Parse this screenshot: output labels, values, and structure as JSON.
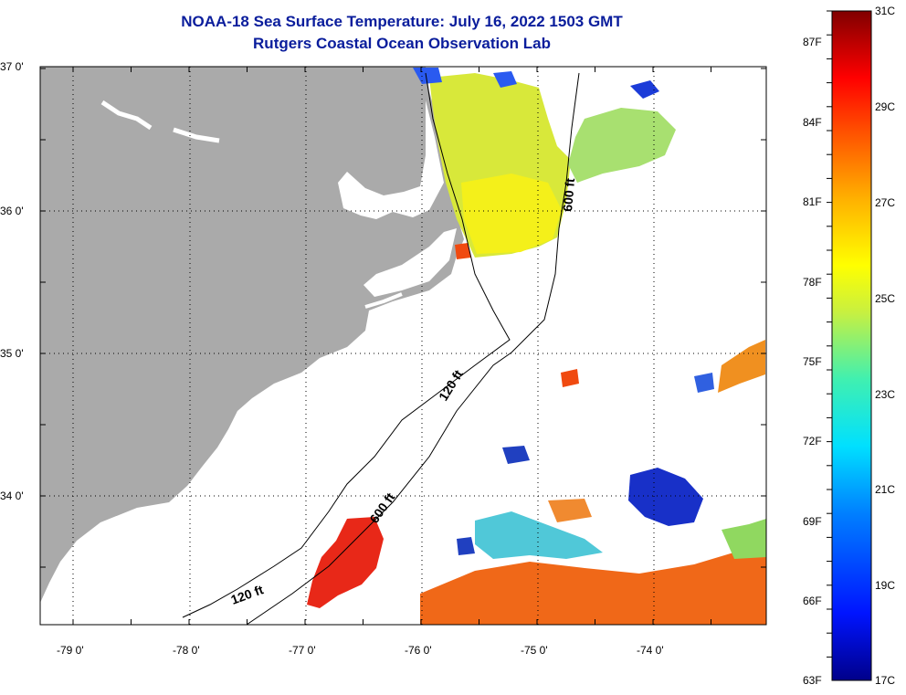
{
  "title": "NOAA-18 Sea Surface Temperature:  July 16, 2022 1503 GMT",
  "subtitle": "Rutgers Coastal Ocean Observation Lab",
  "map": {
    "lon_range": [
      -79.3,
      -73.1
    ],
    "lat_range": [
      33.1,
      37.0
    ],
    "lon_ticks": [
      {
        "value": -79,
        "label": "-79 0'"
      },
      {
        "value": -78,
        "label": "-78 0'"
      },
      {
        "value": -77,
        "label": "-77 0'"
      },
      {
        "value": -76,
        "label": "-76 0'"
      },
      {
        "value": -75,
        "label": "-75 0'"
      },
      {
        "value": -74,
        "label": "-74 0'"
      }
    ],
    "lat_ticks": [
      {
        "value": 37,
        "label": "37 0'"
      },
      {
        "value": 36,
        "label": "36 0'"
      },
      {
        "value": 35,
        "label": "35 0'"
      },
      {
        "value": 34,
        "label": "34 0'"
      }
    ],
    "contour_labels": [
      "120 ft",
      "600 ft",
      "600 ft",
      "120 ft"
    ],
    "colors": {
      "land": "#aaaaaa",
      "ocean_no_data": "#ffffff",
      "grid": "#000000"
    }
  },
  "colorbar": {
    "range_c": [
      17,
      31
    ],
    "celsius_labels": [
      "31C",
      "29C",
      "27C",
      "25C",
      "23C",
      "21C",
      "19C",
      "17C"
    ],
    "fahrenheit_labels": [
      "87F",
      "84F",
      "81F",
      "78F",
      "75F",
      "72F",
      "69F",
      "66F",
      "63F"
    ]
  }
}
